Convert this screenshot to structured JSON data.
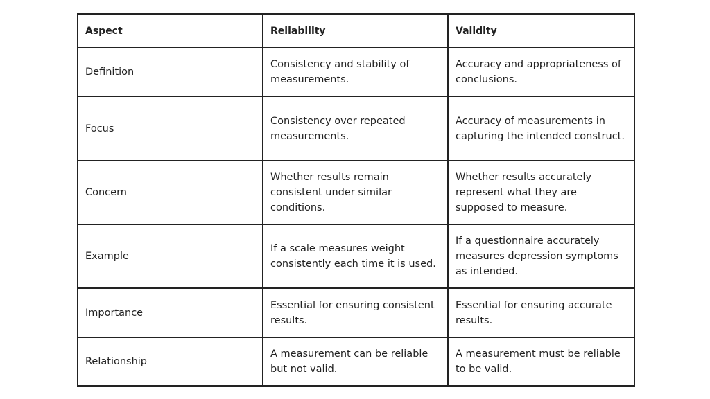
{
  "table": {
    "headers": [
      "Aspect",
      "Reliability",
      "Validity"
    ],
    "rows": [
      [
        "Definition",
        "Consistency and stability of measurements.",
        "Accuracy and appropriateness of conclusions."
      ],
      [
        "Focus",
        "Consistency over repeated measurements.",
        "Accuracy of measurements in capturing the intended construct."
      ],
      [
        "Concern",
        "Whether results remain consistent under similar conditions.",
        "Whether results accurately represent what they are supposed to measure."
      ],
      [
        "Example",
        "If a scale measures weight consistently each time it is used.",
        "If a questionnaire accurately measures depression symptoms as intended."
      ],
      [
        "Importance",
        "Essential for ensuring consistent results.",
        "Essential for ensuring accurate results."
      ],
      [
        "Relationship",
        "A measurement can be reliable but not valid.",
        "A measurement must be reliable to be valid."
      ]
    ]
  }
}
